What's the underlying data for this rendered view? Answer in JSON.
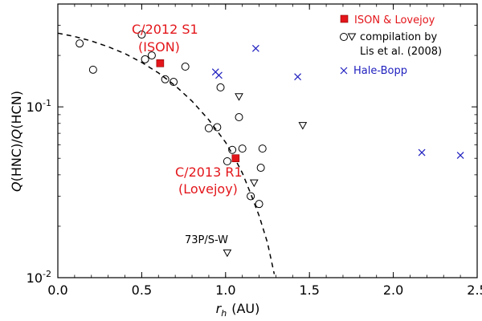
{
  "chart_data": {
    "type": "scatter",
    "xlabel_italic": "r",
    "xlabel_sub": "h",
    "xlabel_unit": "(AU)",
    "ylabel_q1": "Q",
    "ylabel_hnc": "(HNC)/",
    "ylabel_q2": "Q",
    "ylabel_hcn": "(HCN)",
    "xlim": [
      0.0,
      2.5
    ],
    "ylim": [
      0.01,
      0.4
    ],
    "yscale": "log",
    "x_ticks": [
      "0.0",
      "0.5",
      "1.0",
      "1.5",
      "2.0",
      "2.5"
    ],
    "x_tick_values": [
      0.0,
      0.5,
      1.0,
      1.5,
      2.0,
      2.5
    ],
    "y_major_ticks": [
      {
        "value": 0.1,
        "base": "10",
        "exp": "-1"
      },
      {
        "value": 0.01,
        "base": "10",
        "exp": "-2"
      }
    ],
    "series": [
      {
        "name": "ISON & Lovejoy",
        "marker": "filled-square",
        "color": "#e3161b",
        "points": [
          [
            0.61,
            0.18
          ],
          [
            1.06,
            0.05
          ]
        ]
      },
      {
        "name": "compilation by Lis et al. (2008) — circles",
        "marker": "open-circle",
        "color": "#000000",
        "points": [
          [
            0.13,
            0.235
          ],
          [
            0.21,
            0.165
          ],
          [
            0.5,
            0.265
          ],
          [
            0.52,
            0.19
          ],
          [
            0.56,
            0.2
          ],
          [
            0.64,
            0.145
          ],
          [
            0.69,
            0.14
          ],
          [
            0.76,
            0.172
          ],
          [
            0.9,
            0.075
          ],
          [
            0.95,
            0.076
          ],
          [
            0.97,
            0.13
          ],
          [
            1.01,
            0.048
          ],
          [
            1.04,
            0.056
          ],
          [
            1.08,
            0.087
          ],
          [
            1.1,
            0.057
          ],
          [
            1.15,
            0.03
          ],
          [
            1.2,
            0.027
          ],
          [
            1.21,
            0.044
          ],
          [
            1.22,
            0.057
          ]
        ]
      },
      {
        "name": "compilation by Lis et al. (2008) — triangles",
        "marker": "open-triangle-down",
        "color": "#000000",
        "points": [
          [
            1.08,
            0.115
          ],
          [
            1.17,
            0.036
          ],
          [
            1.46,
            0.078
          ],
          [
            1.01,
            0.014
          ]
        ]
      },
      {
        "name": "Hale-Bopp",
        "marker": "x",
        "color": "#1f1fbf",
        "points": [
          [
            0.94,
            0.16
          ],
          [
            0.96,
            0.153
          ],
          [
            1.18,
            0.22
          ],
          [
            1.43,
            0.15
          ],
          [
            2.17,
            0.054
          ],
          [
            2.4,
            0.052
          ]
        ]
      }
    ],
    "fit_curve": {
      "style": "dashed",
      "color": "#000000",
      "points": [
        [
          0.0,
          0.27
        ],
        [
          0.1,
          0.258
        ],
        [
          0.2,
          0.243
        ],
        [
          0.3,
          0.225
        ],
        [
          0.4,
          0.205
        ],
        [
          0.5,
          0.182
        ],
        [
          0.6,
          0.158
        ],
        [
          0.7,
          0.133
        ],
        [
          0.8,
          0.108
        ],
        [
          0.9,
          0.084
        ],
        [
          1.0,
          0.062
        ],
        [
          1.05,
          0.051
        ],
        [
          1.1,
          0.041
        ],
        [
          1.15,
          0.031
        ],
        [
          1.2,
          0.023
        ],
        [
          1.25,
          0.016
        ],
        [
          1.29,
          0.0105
        ]
      ]
    },
    "annotations": [
      {
        "text": "C/2012 S1",
        "color": "red"
      },
      {
        "text": "(ISON)",
        "color": "red"
      },
      {
        "text": "C/2013 R1",
        "color": "red"
      },
      {
        "text": "(Lovejoy)",
        "color": "red"
      },
      {
        "text": "73P/S-W",
        "color": "black"
      }
    ],
    "legend": [
      {
        "label": "ISON & Lovejoy",
        "color": "#e3161b"
      },
      {
        "label": "compilation by",
        "color": "#000000"
      },
      {
        "label": "Lis et al. (2008)",
        "color": "#000000"
      },
      {
        "label": "Hale-Bopp",
        "color": "#1f1fbf"
      }
    ],
    "legend_position": "top-right"
  }
}
